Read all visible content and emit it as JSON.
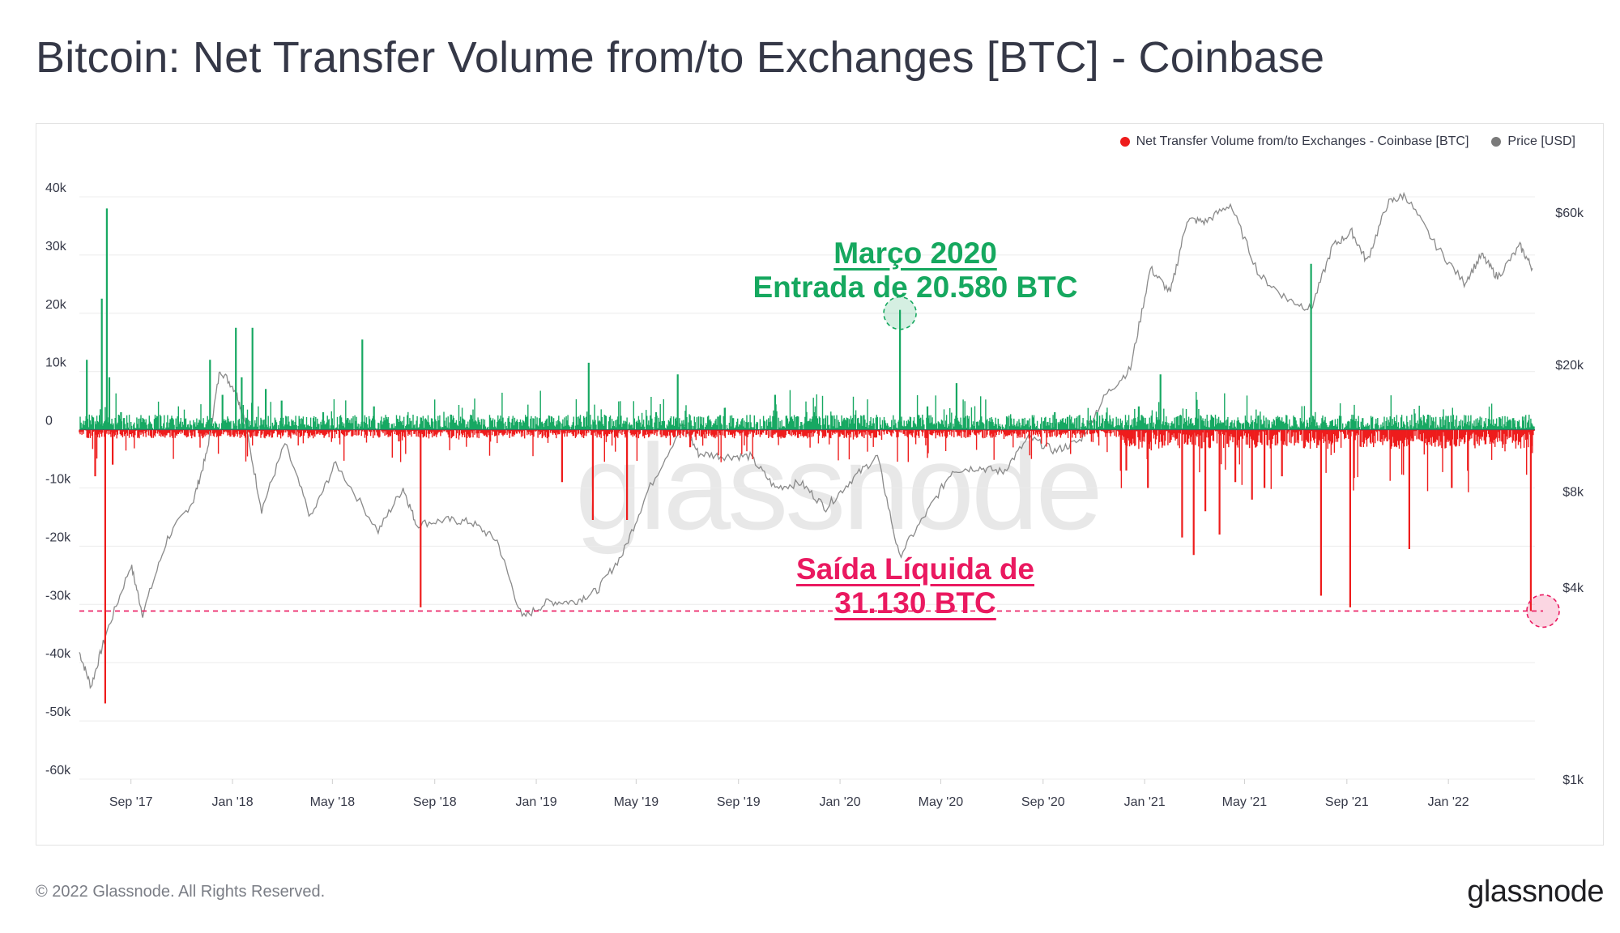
{
  "title": "Bitcoin: Net Transfer Volume from/to Exchanges [BTC] - Coinbase",
  "footer": {
    "copyright": "© 2022 Glassnode. All Rights Reserved.",
    "logo": "glassnode"
  },
  "watermark": "glassnode",
  "legend": [
    {
      "label": "Net Transfer Volume from/to Exchanges - Coinbase [BTC]",
      "color": "#ee1c1c"
    },
    {
      "label": "Price [USD]",
      "color": "#7a7a7a"
    }
  ],
  "annotations": {
    "march2020_title": "Março 2020",
    "march2020_text": "Entrada de 20.580 BTC",
    "outflow_title": "Saída Líquida de",
    "outflow_text": "31.130 BTC"
  },
  "colors": {
    "inflow": "#17a862",
    "outflow": "#ee1c1c",
    "price": "#8a8a8a",
    "annot_green": "#16a85f",
    "annot_red": "#ea1960"
  },
  "chart_data": {
    "type": "bar",
    "x_ticks": [
      "Sep '17",
      "Jan '18",
      "May '18",
      "Sep '18",
      "Jan '19",
      "May '19",
      "Sep '19",
      "Jan '20",
      "May '20",
      "Sep '20",
      "Jan '21",
      "May '21",
      "Sep '21",
      "Jan '22"
    ],
    "y_left_ticks": [
      "40k",
      "30k",
      "20k",
      "10k",
      "0",
      "-10k",
      "-20k",
      "-30k",
      "-40k",
      "-50k",
      "-60k"
    ],
    "y_right_ticks": [
      "$60k",
      "$20k",
      "$8k",
      "$4k",
      "$1k"
    ],
    "y_left_range": [
      -60000,
      40000
    ],
    "y_right_range_usd": [
      1000,
      60000
    ],
    "y_right_scale": "log",
    "grid": true,
    "legend_position": "top-right",
    "annotated_points": [
      {
        "date": "2020-03",
        "value": 20580
      },
      {
        "date": "2022-04",
        "value": -31130
      }
    ],
    "series": [
      {
        "name": "Net Transfer Volume from/to Exchanges - Coinbase [BTC]",
        "type": "bar",
        "points": [
          [
            "2017-07-10",
            12000
          ],
          [
            "2017-07-20",
            -8000
          ],
          [
            "2017-07-28",
            22500
          ],
          [
            "2017-08-01",
            -47000
          ],
          [
            "2017-08-03",
            38000
          ],
          [
            "2017-08-06",
            9000
          ],
          [
            "2017-08-10",
            -6000
          ],
          [
            "2017-08-20",
            3000
          ],
          [
            "2017-10-20",
            2000
          ],
          [
            "2017-12-05",
            12000
          ],
          [
            "2017-12-20",
            6000
          ],
          [
            "2018-01-05",
            17500
          ],
          [
            "2018-01-12",
            9000
          ],
          [
            "2018-01-25",
            17500
          ],
          [
            "2018-02-10",
            7000
          ],
          [
            "2018-03-01",
            5000
          ],
          [
            "2018-04-20",
            3000
          ],
          [
            "2018-06-06",
            15500
          ],
          [
            "2018-06-20",
            4000
          ],
          [
            "2018-07-20",
            -2000
          ],
          [
            "2018-08-15",
            -30500
          ],
          [
            "2018-10-15",
            2500
          ],
          [
            "2019-01-05",
            2000
          ],
          [
            "2019-02-01",
            -9000
          ],
          [
            "2019-03-05",
            11500
          ],
          [
            "2019-03-10",
            -15500
          ],
          [
            "2019-04-20",
            -15500
          ],
          [
            "2019-05-25",
            3000
          ],
          [
            "2019-06-20",
            9500
          ],
          [
            "2019-07-05",
            -3000
          ],
          [
            "2019-08-10",
            2500
          ],
          [
            "2019-10-15",
            6000
          ],
          [
            "2019-12-01",
            3000
          ],
          [
            "2020-01-10",
            2000
          ],
          [
            "2020-03-13",
            20580
          ],
          [
            "2020-04-15",
            4000
          ],
          [
            "2020-05-20",
            8000
          ],
          [
            "2020-07-20",
            2000
          ],
          [
            "2020-09-15",
            3000
          ],
          [
            "2020-11-05",
            3000
          ],
          [
            "2020-12-10",
            -7000
          ],
          [
            "2020-12-25",
            4000
          ],
          [
            "2021-01-05",
            -10000
          ],
          [
            "2021-01-20",
            9500
          ],
          [
            "2021-02-15",
            -18500
          ],
          [
            "2021-03-01",
            -21500
          ],
          [
            "2021-03-15",
            -14000
          ],
          [
            "2021-04-01",
            -18000
          ],
          [
            "2021-04-20",
            -9000
          ],
          [
            "2021-05-10",
            -12000
          ],
          [
            "2021-05-25",
            -10000
          ],
          [
            "2021-06-15",
            -8000
          ],
          [
            "2021-07-20",
            28500
          ],
          [
            "2021-08-01",
            -28500
          ],
          [
            "2021-09-05",
            -30500
          ],
          [
            "2021-09-20",
            2000
          ],
          [
            "2021-11-15",
            -20500
          ],
          [
            "2022-01-05",
            -10000
          ],
          [
            "2022-03-20",
            2000
          ],
          [
            "2022-04-10",
            -31130
          ]
        ]
      },
      {
        "name": "Price [USD]",
        "type": "line",
        "points": [
          [
            "2017-07-01",
            2500
          ],
          [
            "2017-07-15",
            1950
          ],
          [
            "2017-08-01",
            2800
          ],
          [
            "2017-09-01",
            4700
          ],
          [
            "2017-09-15",
            3300
          ],
          [
            "2017-10-15",
            5700
          ],
          [
            "2017-11-15",
            7500
          ],
          [
            "2017-12-01",
            10500
          ],
          [
            "2017-12-17",
            19300
          ],
          [
            "2018-01-05",
            16500
          ],
          [
            "2018-01-15",
            13500
          ],
          [
            "2018-02-05",
            7000
          ],
          [
            "2018-03-05",
            11300
          ],
          [
            "2018-04-05",
            6600
          ],
          [
            "2018-05-05",
            9800
          ],
          [
            "2018-06-25",
            6000
          ],
          [
            "2018-07-25",
            8200
          ],
          [
            "2018-08-10",
            6300
          ],
          [
            "2018-09-15",
            6500
          ],
          [
            "2018-10-15",
            6400
          ],
          [
            "2018-11-15",
            5600
          ],
          [
            "2018-12-15",
            3200
          ],
          [
            "2019-01-15",
            3600
          ],
          [
            "2019-02-15",
            3600
          ],
          [
            "2019-03-15",
            3900
          ],
          [
            "2019-04-15",
            5100
          ],
          [
            "2019-05-15",
            8000
          ],
          [
            "2019-06-26",
            13000
          ],
          [
            "2019-07-15",
            10500
          ],
          [
            "2019-08-15",
            10300
          ],
          [
            "2019-09-15",
            10300
          ],
          [
            "2019-10-15",
            8200
          ],
          [
            "2019-11-15",
            8500
          ],
          [
            "2019-12-15",
            7100
          ],
          [
            "2020-01-15",
            8700
          ],
          [
            "2020-02-15",
            10300
          ],
          [
            "2020-03-12",
            5000
          ],
          [
            "2020-04-15",
            6900
          ],
          [
            "2020-05-15",
            9300
          ],
          [
            "2020-06-15",
            9500
          ],
          [
            "2020-07-15",
            9200
          ],
          [
            "2020-08-15",
            11800
          ],
          [
            "2020-09-15",
            10700
          ],
          [
            "2020-10-15",
            11500
          ],
          [
            "2020-11-15",
            16000
          ],
          [
            "2020-12-15",
            19400
          ],
          [
            "2021-01-08",
            40000
          ],
          [
            "2021-02-01",
            33500
          ],
          [
            "2021-02-21",
            57000
          ],
          [
            "2021-03-15",
            56000
          ],
          [
            "2021-04-14",
            63500
          ],
          [
            "2021-05-19",
            38000
          ],
          [
            "2021-06-22",
            32000
          ],
          [
            "2021-07-20",
            29800
          ],
          [
            "2021-08-15",
            47000
          ],
          [
            "2021-09-07",
            52000
          ],
          [
            "2021-09-25",
            42000
          ],
          [
            "2021-10-20",
            64000
          ],
          [
            "2021-11-10",
            68000
          ],
          [
            "2021-12-15",
            48000
          ],
          [
            "2022-01-20",
            36000
          ],
          [
            "2022-02-10",
            44000
          ],
          [
            "2022-03-01",
            37500
          ],
          [
            "2022-03-28",
            47000
          ],
          [
            "2022-04-12",
            40000
          ]
        ]
      }
    ]
  }
}
